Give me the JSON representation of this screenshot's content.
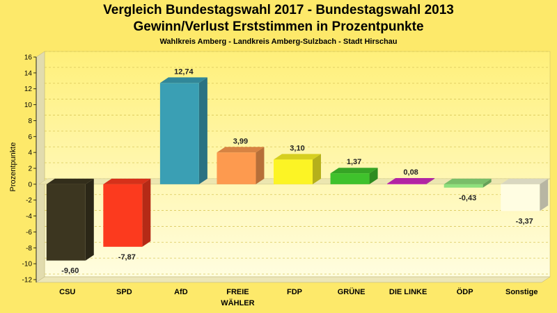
{
  "chart_data": {
    "type": "bar",
    "title_line1": "Vergleich Bundestagswahl 2017 - Bundestagswahl 2013",
    "title_line2": "Gewinn/Verlust Erststimmen in Prozentpunkte",
    "subtitle": "Wahlkreis Amberg - Landkreis Amberg-Sulzbach - Stadt Hirschau",
    "ylabel": "Prozentpunkte",
    "xlabel": "",
    "ylim": [
      -12,
      16
    ],
    "yticks": [
      16,
      14,
      12,
      10,
      8,
      6,
      4,
      2,
      0,
      -2,
      -4,
      -6,
      -8,
      -10,
      -12
    ],
    "grid": true,
    "categories": [
      {
        "name": "CSU",
        "name2": ""
      },
      {
        "name": "SPD",
        "name2": ""
      },
      {
        "name": "AfD",
        "name2": ""
      },
      {
        "name": "FREIE",
        "name2": "WÄHLER"
      },
      {
        "name": "FDP",
        "name2": ""
      },
      {
        "name": "GRÜNE",
        "name2": ""
      },
      {
        "name": "DIE LINKE",
        "name2": ""
      },
      {
        "name": "ÖDP",
        "name2": ""
      },
      {
        "name": "Sonstige",
        "name2": ""
      }
    ],
    "values": [
      -9.6,
      -7.87,
      12.74,
      3.99,
      3.1,
      1.37,
      0.08,
      -0.43,
      -3.37
    ],
    "value_labels": [
      "-9,60",
      "-7,87",
      "12,74",
      "3,99",
      "3,10",
      "1,37",
      "0,08",
      "-0,43",
      "-3,37"
    ],
    "colors": [
      "#3c3620",
      "#fc3a1e",
      "#3a9fb4",
      "#fd9a4f",
      "#fcf425",
      "#3fc22c",
      "#d02cc0",
      "#8ee07c",
      "#fffde2"
    ]
  }
}
